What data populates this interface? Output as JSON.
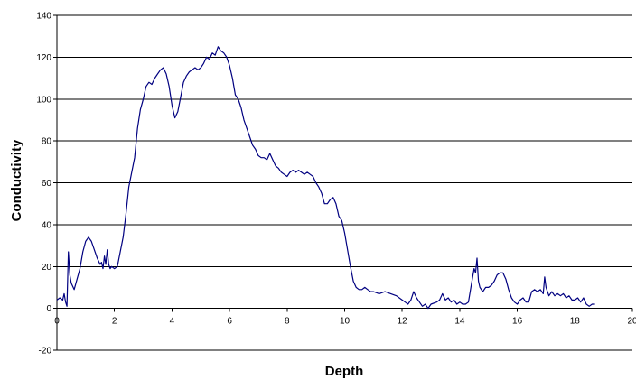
{
  "chart_data": {
    "type": "line",
    "title": "",
    "xlabel": "Depth",
    "ylabel": "Conductivity",
    "xlim": [
      0,
      20
    ],
    "ylim": [
      -20,
      140
    ],
    "x_ticks": [
      "0",
      "2",
      "4",
      "6",
      "8",
      "10",
      "12",
      "14",
      "16",
      "18",
      "20"
    ],
    "y_ticks": [
      "-20",
      "0",
      "20",
      "40",
      "60",
      "80",
      "100",
      "120",
      "140"
    ],
    "grid": true,
    "legend": "none",
    "series": [
      {
        "color": "#000080",
        "points": [
          [
            0.0,
            4
          ],
          [
            0.1,
            5
          ],
          [
            0.2,
            4
          ],
          [
            0.25,
            7
          ],
          [
            0.3,
            3
          ],
          [
            0.35,
            1
          ],
          [
            0.4,
            27
          ],
          [
            0.45,
            16
          ],
          [
            0.5,
            12
          ],
          [
            0.6,
            9
          ],
          [
            0.7,
            14
          ],
          [
            0.8,
            19
          ],
          [
            0.9,
            27
          ],
          [
            1.0,
            32
          ],
          [
            1.1,
            34
          ],
          [
            1.2,
            32
          ],
          [
            1.3,
            28
          ],
          [
            1.4,
            24
          ],
          [
            1.5,
            21
          ],
          [
            1.55,
            22
          ],
          [
            1.6,
            19
          ],
          [
            1.65,
            25
          ],
          [
            1.7,
            21
          ],
          [
            1.75,
            28
          ],
          [
            1.8,
            21
          ],
          [
            1.85,
            19
          ],
          [
            1.9,
            20
          ],
          [
            2.0,
            19
          ],
          [
            2.1,
            20
          ],
          [
            2.2,
            27
          ],
          [
            2.3,
            34
          ],
          [
            2.4,
            45
          ],
          [
            2.5,
            58
          ],
          [
            2.6,
            65
          ],
          [
            2.7,
            72
          ],
          [
            2.8,
            86
          ],
          [
            2.9,
            95
          ],
          [
            3.0,
            100
          ],
          [
            3.1,
            106
          ],
          [
            3.2,
            108
          ],
          [
            3.3,
            107
          ],
          [
            3.4,
            110
          ],
          [
            3.5,
            112
          ],
          [
            3.6,
            114
          ],
          [
            3.7,
            115
          ],
          [
            3.8,
            112
          ],
          [
            3.9,
            106
          ],
          [
            4.0,
            97
          ],
          [
            4.1,
            91
          ],
          [
            4.2,
            94
          ],
          [
            4.3,
            101
          ],
          [
            4.4,
            108
          ],
          [
            4.5,
            111
          ],
          [
            4.6,
            113
          ],
          [
            4.7,
            114
          ],
          [
            4.8,
            115
          ],
          [
            4.9,
            114
          ],
          [
            5.0,
            115
          ],
          [
            5.1,
            117
          ],
          [
            5.2,
            120
          ],
          [
            5.3,
            119
          ],
          [
            5.4,
            122
          ],
          [
            5.5,
            121
          ],
          [
            5.6,
            125
          ],
          [
            5.7,
            123
          ],
          [
            5.8,
            122
          ],
          [
            5.9,
            120
          ],
          [
            6.0,
            116
          ],
          [
            6.1,
            110
          ],
          [
            6.2,
            102
          ],
          [
            6.3,
            100
          ],
          [
            6.4,
            96
          ],
          [
            6.5,
            90
          ],
          [
            6.6,
            86
          ],
          [
            6.7,
            82
          ],
          [
            6.8,
            78
          ],
          [
            6.9,
            76
          ],
          [
            7.0,
            73
          ],
          [
            7.1,
            72
          ],
          [
            7.2,
            72
          ],
          [
            7.3,
            71
          ],
          [
            7.4,
            74
          ],
          [
            7.5,
            71
          ],
          [
            7.6,
            68
          ],
          [
            7.7,
            67
          ],
          [
            7.8,
            65
          ],
          [
            7.9,
            64
          ],
          [
            8.0,
            63
          ],
          [
            8.1,
            65
          ],
          [
            8.2,
            66
          ],
          [
            8.3,
            65
          ],
          [
            8.4,
            66
          ],
          [
            8.5,
            65
          ],
          [
            8.6,
            64
          ],
          [
            8.7,
            65
          ],
          [
            8.8,
            64
          ],
          [
            8.9,
            63
          ],
          [
            9.0,
            60
          ],
          [
            9.1,
            58
          ],
          [
            9.2,
            55
          ],
          [
            9.3,
            50
          ],
          [
            9.4,
            50
          ],
          [
            9.5,
            52
          ],
          [
            9.6,
            53
          ],
          [
            9.7,
            50
          ],
          [
            9.8,
            44
          ],
          [
            9.9,
            42
          ],
          [
            10.0,
            36
          ],
          [
            10.1,
            28
          ],
          [
            10.2,
            20
          ],
          [
            10.3,
            13
          ],
          [
            10.4,
            10
          ],
          [
            10.5,
            9
          ],
          [
            10.6,
            9
          ],
          [
            10.7,
            10
          ],
          [
            10.8,
            9
          ],
          [
            10.9,
            8
          ],
          [
            11.0,
            8
          ],
          [
            11.2,
            7
          ],
          [
            11.4,
            8
          ],
          [
            11.6,
            7
          ],
          [
            11.8,
            6
          ],
          [
            12.0,
            4
          ],
          [
            12.1,
            3
          ],
          [
            12.2,
            2
          ],
          [
            12.3,
            4
          ],
          [
            12.4,
            8
          ],
          [
            12.5,
            5
          ],
          [
            12.6,
            3
          ],
          [
            12.7,
            1
          ],
          [
            12.8,
            2
          ],
          [
            12.9,
            0
          ],
          [
            13.0,
            2
          ],
          [
            13.2,
            3
          ],
          [
            13.3,
            4
          ],
          [
            13.4,
            7
          ],
          [
            13.5,
            4
          ],
          [
            13.6,
            5
          ],
          [
            13.7,
            3
          ],
          [
            13.8,
            4
          ],
          [
            13.9,
            2
          ],
          [
            14.0,
            3
          ],
          [
            14.1,
            2
          ],
          [
            14.2,
            2
          ],
          [
            14.3,
            3
          ],
          [
            14.4,
            11
          ],
          [
            14.5,
            19
          ],
          [
            14.55,
            17
          ],
          [
            14.6,
            24
          ],
          [
            14.65,
            13
          ],
          [
            14.7,
            10
          ],
          [
            14.8,
            8
          ],
          [
            14.9,
            10
          ],
          [
            15.0,
            10
          ],
          [
            15.1,
            11
          ],
          [
            15.2,
            13
          ],
          [
            15.3,
            16
          ],
          [
            15.4,
            17
          ],
          [
            15.5,
            17
          ],
          [
            15.6,
            14
          ],
          [
            15.7,
            9
          ],
          [
            15.8,
            5
          ],
          [
            15.9,
            3
          ],
          [
            16.0,
            2
          ],
          [
            16.1,
            4
          ],
          [
            16.2,
            5
          ],
          [
            16.3,
            3
          ],
          [
            16.4,
            3
          ],
          [
            16.5,
            8
          ],
          [
            16.6,
            9
          ],
          [
            16.7,
            8
          ],
          [
            16.8,
            9
          ],
          [
            16.9,
            7
          ],
          [
            16.95,
            15
          ],
          [
            17.0,
            10
          ],
          [
            17.1,
            6
          ],
          [
            17.2,
            8
          ],
          [
            17.3,
            6
          ],
          [
            17.4,
            7
          ],
          [
            17.5,
            6
          ],
          [
            17.6,
            7
          ],
          [
            17.7,
            5
          ],
          [
            17.8,
            6
          ],
          [
            17.9,
            4
          ],
          [
            18.0,
            4
          ],
          [
            18.1,
            5
          ],
          [
            18.2,
            3
          ],
          [
            18.3,
            5
          ],
          [
            18.4,
            2
          ],
          [
            18.5,
            1
          ],
          [
            18.6,
            2
          ],
          [
            18.7,
            2
          ]
        ]
      }
    ]
  }
}
